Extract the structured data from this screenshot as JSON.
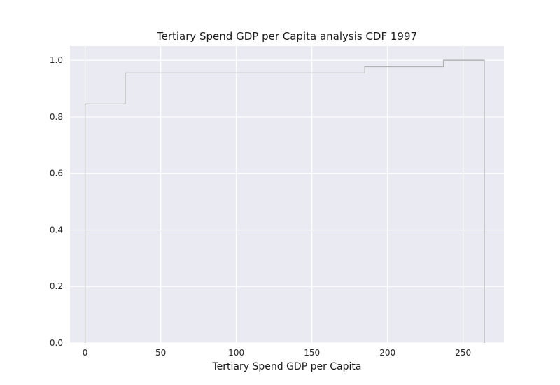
{
  "chart_data": {
    "type": "line",
    "subtype": "step-cdf",
    "title": "Tertiary Spend GDP per Capita analysis CDF 1997",
    "xlabel": "Tertiary Spend GDP per Capita",
    "ylabel": "",
    "xlim": [
      -10,
      277
    ],
    "ylim": [
      0,
      1.05
    ],
    "xticks": [
      0,
      50,
      100,
      150,
      200,
      250
    ],
    "yticks": [
      0.0,
      0.2,
      0.4,
      0.6,
      0.8,
      1.0
    ],
    "xtick_labels": [
      "0",
      "50",
      "100",
      "150",
      "200",
      "250"
    ],
    "ytick_labels": [
      "0.0",
      "0.2",
      "0.4",
      "0.6",
      "0.8",
      "1.0"
    ],
    "grid": true,
    "background": "#eaeaf2",
    "grid_color": "#ffffff",
    "line_color": "#b0b0b0",
    "series": [
      {
        "x": [
          0,
          0,
          26.5,
          26.5,
          185,
          185,
          237,
          237,
          264,
          264
        ],
        "y": [
          0,
          0.846,
          0.846,
          0.955,
          0.955,
          0.977,
          0.977,
          1.0,
          1.0,
          0
        ]
      }
    ]
  }
}
